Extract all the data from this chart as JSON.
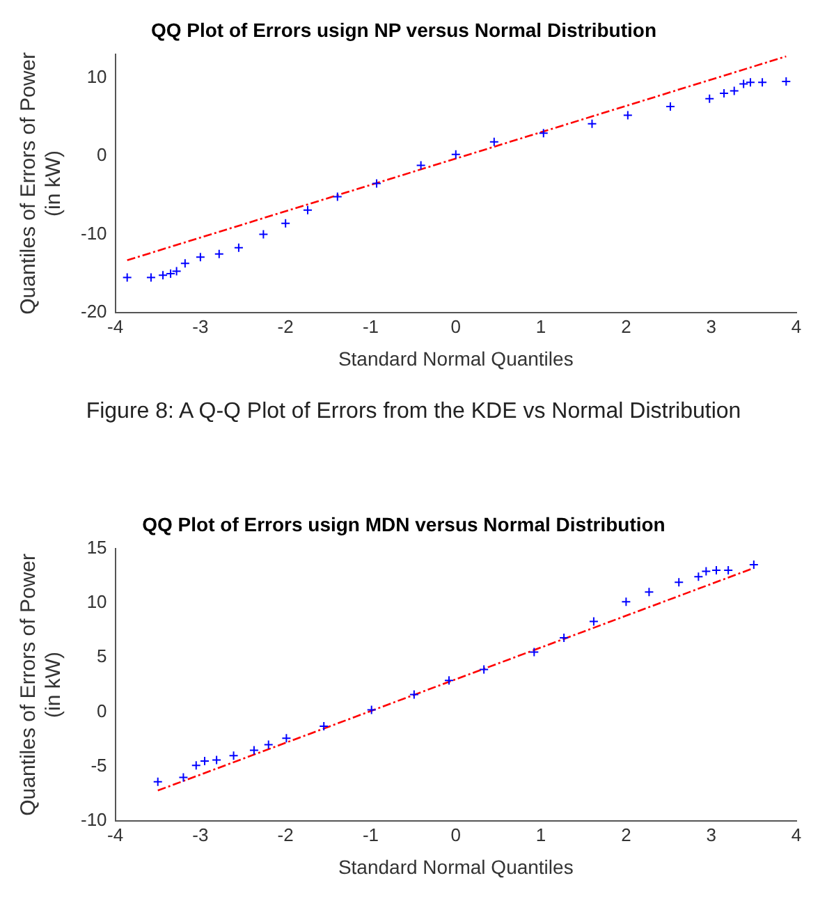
{
  "chart_data": [
    {
      "type": "scatter",
      "title": "QQ Plot of Errors usign NP versus Normal Distribution",
      "xlabel": "Standard Normal Quantiles",
      "ylabel": "Quantiles of Errors of Power\n(in kW)",
      "xlim": [
        -4,
        4
      ],
      "xticks": [
        -4,
        -3,
        -2,
        -1,
        0,
        1,
        2,
        3,
        4
      ],
      "ylim": [
        -20,
        13
      ],
      "yticks": [
        -20,
        -10,
        0,
        10
      ],
      "grid": false,
      "legend": false,
      "annotations": [
        "Figure 8: A Q-Q Plot of Errors from the KDE vs Normal Distribution"
      ],
      "series": [
        {
          "type": "scatter",
          "color": "#0000ff",
          "marker": "cross",
          "x": [
            -3.86,
            -3.58,
            -3.44,
            -3.35,
            -3.28,
            -3.18,
            -3.0,
            -2.78,
            -2.55,
            -2.26,
            -2.0,
            -1.74,
            -1.39,
            -0.93,
            -0.41,
            0,
            0.45,
            1.03,
            1.6,
            2.02,
            2.52,
            2.98,
            3.15,
            3.27,
            3.38,
            3.46,
            3.6,
            3.88
          ],
          "values": [
            -15.5,
            -15.5,
            -15.2,
            -15.0,
            -14.7,
            -13.7,
            -12.9,
            -12.5,
            -11.7,
            -10.0,
            -8.6,
            -6.9,
            -5.2,
            -3.5,
            -1.2,
            0.2,
            1.8,
            2.9,
            4.1,
            5.2,
            6.3,
            7.3,
            8.0,
            8.3,
            9.2,
            9.4,
            9.4,
            9.5
          ]
        },
        {
          "type": "line",
          "color": "#ff0000",
          "marker": "none",
          "line_style": "dashed",
          "x": [
            -3.86,
            3.88
          ],
          "values": [
            -13.3,
            12.7
          ]
        }
      ]
    },
    {
      "type": "scatter",
      "title": "QQ Plot of Errors usign MDN versus Normal Distribution",
      "xlabel": "Standard Normal Quantiles",
      "ylabel": "Quantiles of Errors of Power\n(in kW)",
      "xlim": [
        -4,
        4
      ],
      "xticks": [
        -4,
        -3,
        -2,
        -1,
        0,
        1,
        2,
        3,
        4
      ],
      "ylim": [
        -10,
        15
      ],
      "yticks": [
        -10,
        -5,
        0,
        5,
        10,
        15
      ],
      "grid": false,
      "legend": false,
      "series": [
        {
          "type": "scatter",
          "color": "#0000ff",
          "marker": "cross",
          "x": [
            -3.5,
            -3.2,
            -3.05,
            -2.95,
            -2.81,
            -2.61,
            -2.37,
            -2.2,
            -1.99,
            -1.55,
            -0.99,
            -0.49,
            -0.08,
            0.33,
            0.92,
            1.27,
            1.62,
            2.0,
            2.27,
            2.62,
            2.85,
            2.94,
            3.06,
            3.2,
            3.5
          ],
          "values": [
            -6.4,
            -6.0,
            -4.9,
            -4.5,
            -4.4,
            -4.0,
            -3.5,
            -3.0,
            -2.4,
            -1.3,
            0.2,
            1.6,
            2.9,
            3.9,
            5.5,
            6.8,
            8.3,
            10.1,
            11.0,
            11.9,
            12.4,
            12.9,
            13.0,
            13.0,
            13.5
          ]
        },
        {
          "type": "line",
          "color": "#ff0000",
          "marker": "none",
          "line_style": "dashed",
          "x": [
            -3.5,
            3.5
          ],
          "values": [
            -7.2,
            13.2
          ]
        }
      ]
    }
  ]
}
